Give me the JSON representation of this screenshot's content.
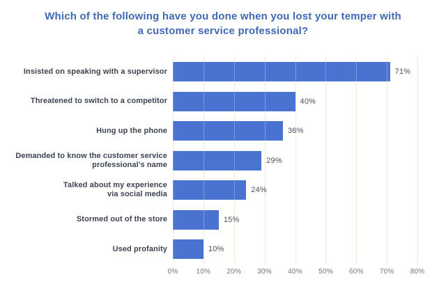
{
  "title_lines": [
    "Which of the following have you done when you lost your temper with",
    "a customer service professional?"
  ],
  "colors": {
    "background": "#ffffff",
    "title": "#4068b3",
    "bar": "#4a73d1",
    "category_label": "#3d4350",
    "value_label": "#4a505c",
    "tick_label": "#6e7480",
    "gridline": "#eee3c9"
  },
  "chart_data": {
    "type": "bar",
    "orientation": "horizontal",
    "title": "Which of the following have you done when you lost your temper with a customer service professional?",
    "categories": [
      "Insisted on speaking with a supervisor",
      "Threatened to switch to a competitor",
      "Hung up the phone",
      "Demanded to know the customer service professional’s name",
      "Talked about my experience via social media",
      "Stormed out of the store",
      "Used profanity"
    ],
    "category_lines": [
      [
        "Insisted on speaking with a supervisor"
      ],
      [
        "Threatened to switch to a competitor"
      ],
      [
        "Hung up the phone"
      ],
      [
        "Demanded to know the customer service",
        "professional’s name"
      ],
      [
        "Talked about my experience",
        "via social media"
      ],
      [
        "Stormed out of the store"
      ],
      [
        "Used profanity"
      ]
    ],
    "values": [
      71,
      40,
      36,
      29,
      24,
      15,
      10
    ],
    "value_labels": [
      "71%",
      "40%",
      "36%",
      "29%",
      "24%",
      "15%",
      "10%"
    ],
    "xlabel": "",
    "ylabel": "",
    "xlim": [
      0,
      80
    ],
    "x_tick_values": [
      0,
      10,
      20,
      30,
      40,
      50,
      60,
      70,
      80
    ],
    "x_tick_labels": [
      "0%",
      "10%",
      "20%",
      "30%",
      "40%",
      "50%",
      "60%",
      "70%",
      "80%"
    ],
    "grid": "vertical",
    "legend": false
  }
}
